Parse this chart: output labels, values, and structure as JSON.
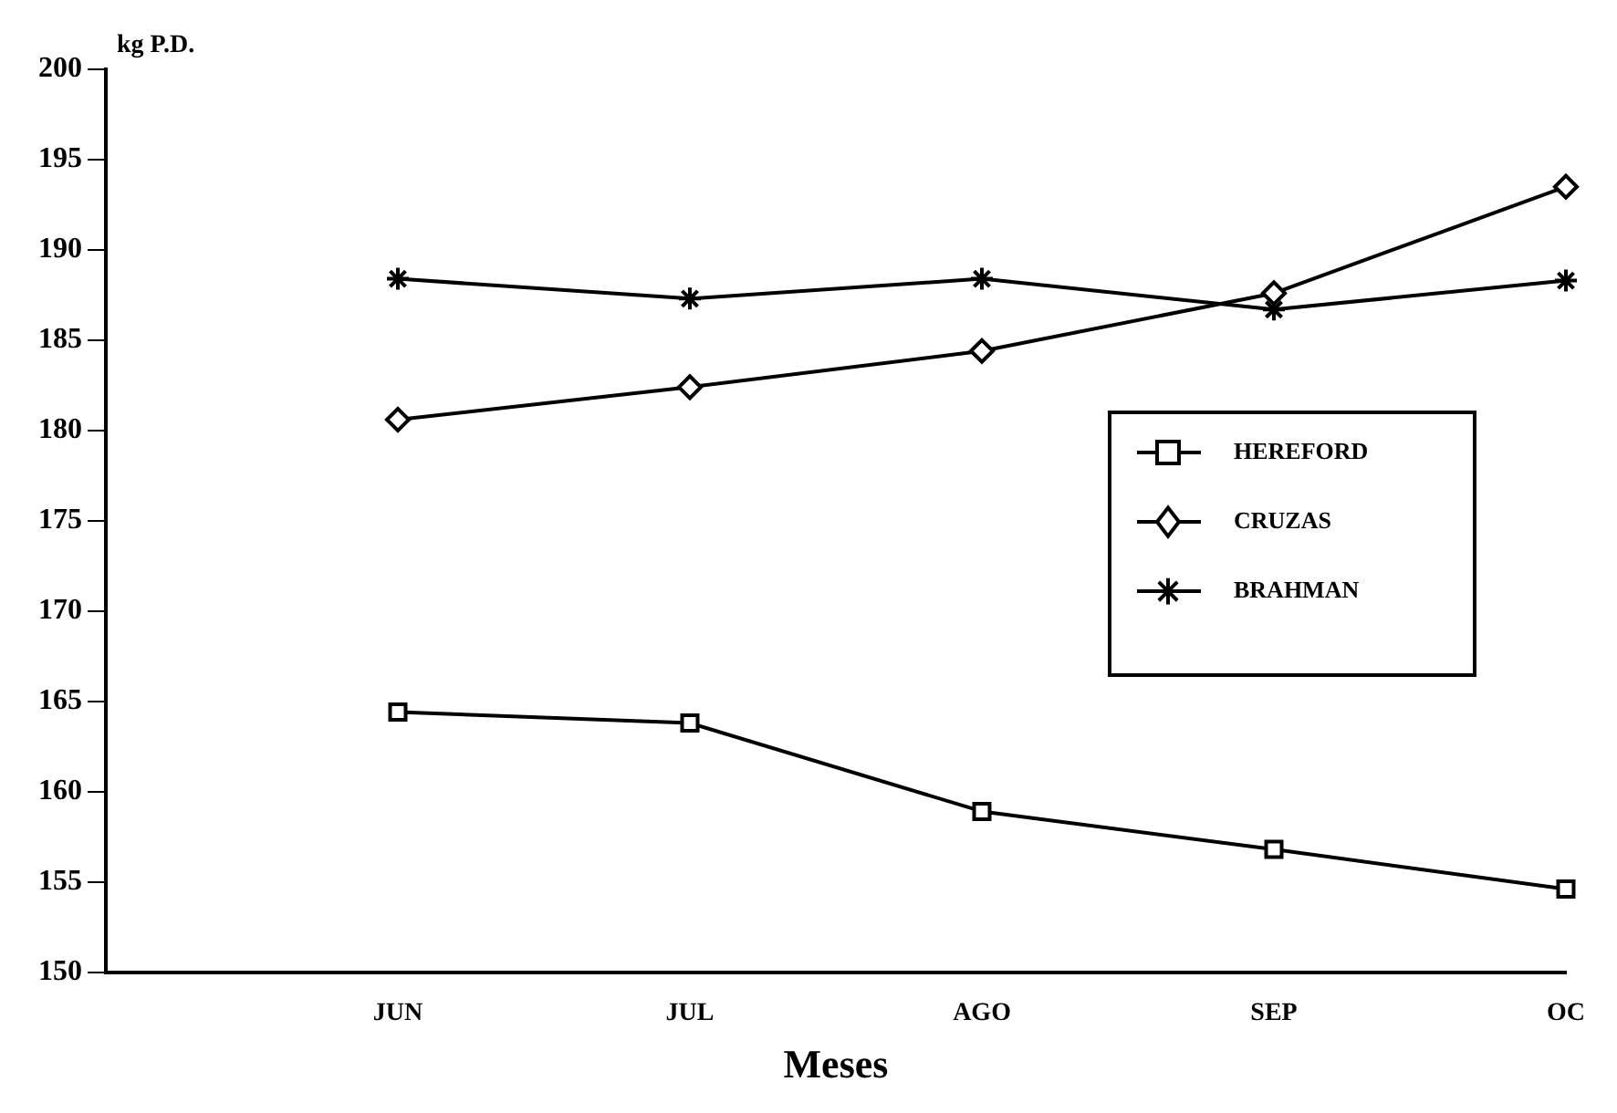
{
  "chart_data": {
    "type": "line",
    "xlabel": "Meses",
    "ylabel": "kg P.D.",
    "categories": [
      null,
      "JUN",
      "JUL",
      "AGO",
      "SEP",
      "OC"
    ],
    "series": [
      {
        "name": "HEREFORD",
        "color": "#000000",
        "marker": "square",
        "values": [
          null,
          164.4,
          163.8,
          158.9,
          156.8,
          154.6
        ]
      },
      {
        "name": "CRUZAS",
        "color": "#000000",
        "marker": "diamond",
        "values": [
          null,
          180.6,
          182.4,
          184.4,
          187.6,
          193.5
        ]
      },
      {
        "name": "BRAHMAN",
        "color": "#000000",
        "marker": "cross",
        "values": [
          null,
          188.4,
          187.3,
          188.4,
          186.7,
          188.3
        ]
      }
    ],
    "ylim": [
      150,
      200
    ],
    "yticks": [
      150,
      155,
      160,
      165,
      170,
      175,
      180,
      185,
      190,
      195,
      200
    ],
    "grid": false,
    "legend": "right",
    "line_style": "solid"
  }
}
